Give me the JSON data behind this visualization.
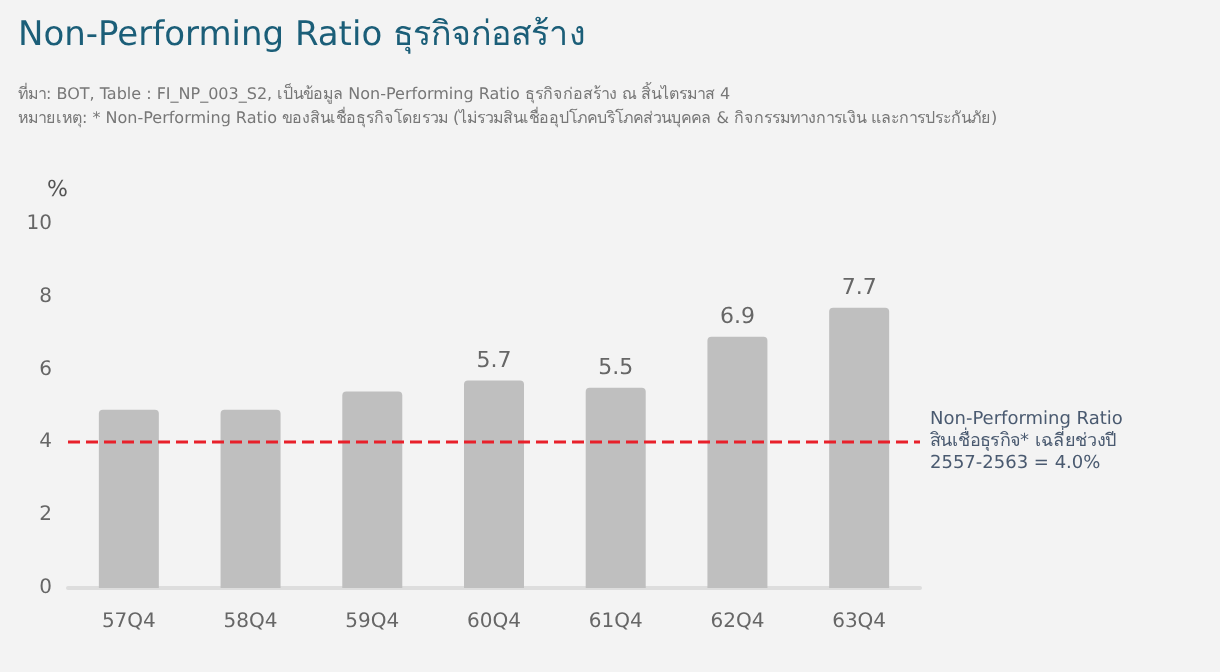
{
  "chart_data": {
    "type": "bar",
    "title": "Non-Performing Ratio ธุรกิจก่อสร้าง",
    "subtitle": "ที่มา: BOT, Table : FI_NP_003_S2, เป็นข้อมูล Non-Performing Ratio ธุรกิจก่อสร้าง ณ สิ้นไตรมาส 4",
    "annotations": [
      "หมายเหตุ: * Non-Performing Ratio ของสินเชื่อธุรกิจโดยรวม (ไม่รวมสินเชื่ออุปโภคบริโภคส่วนบุคคล & กิจกรรมทางการเงิน และการประกันภัย)"
    ],
    "ylabel": "%",
    "categories": [
      "57Q4",
      "58Q4",
      "59Q4",
      "60Q4",
      "61Q4",
      "62Q4",
      "63Q4"
    ],
    "values": [
      4.9,
      4.9,
      5.4,
      5.7,
      5.5,
      6.9,
      7.7
    ],
    "value_labels": [
      null,
      null,
      null,
      "5.7",
      "5.5",
      "6.9",
      "7.7"
    ],
    "color": "#bfbfbf",
    "ylim": [
      0,
      10
    ],
    "yticks": [
      0,
      2,
      4,
      6,
      8,
      10
    ],
    "grid": false,
    "ref_lines": [
      {
        "axis": "y",
        "value": 4.0,
        "label": "Non-Performing Ratio\nสินเชื่อธุรกิจ* เฉลี่ยช่วงปี\n2557-2563 = 4.0%",
        "color": "#e8202a",
        "line_style": "dashed"
      }
    ]
  }
}
